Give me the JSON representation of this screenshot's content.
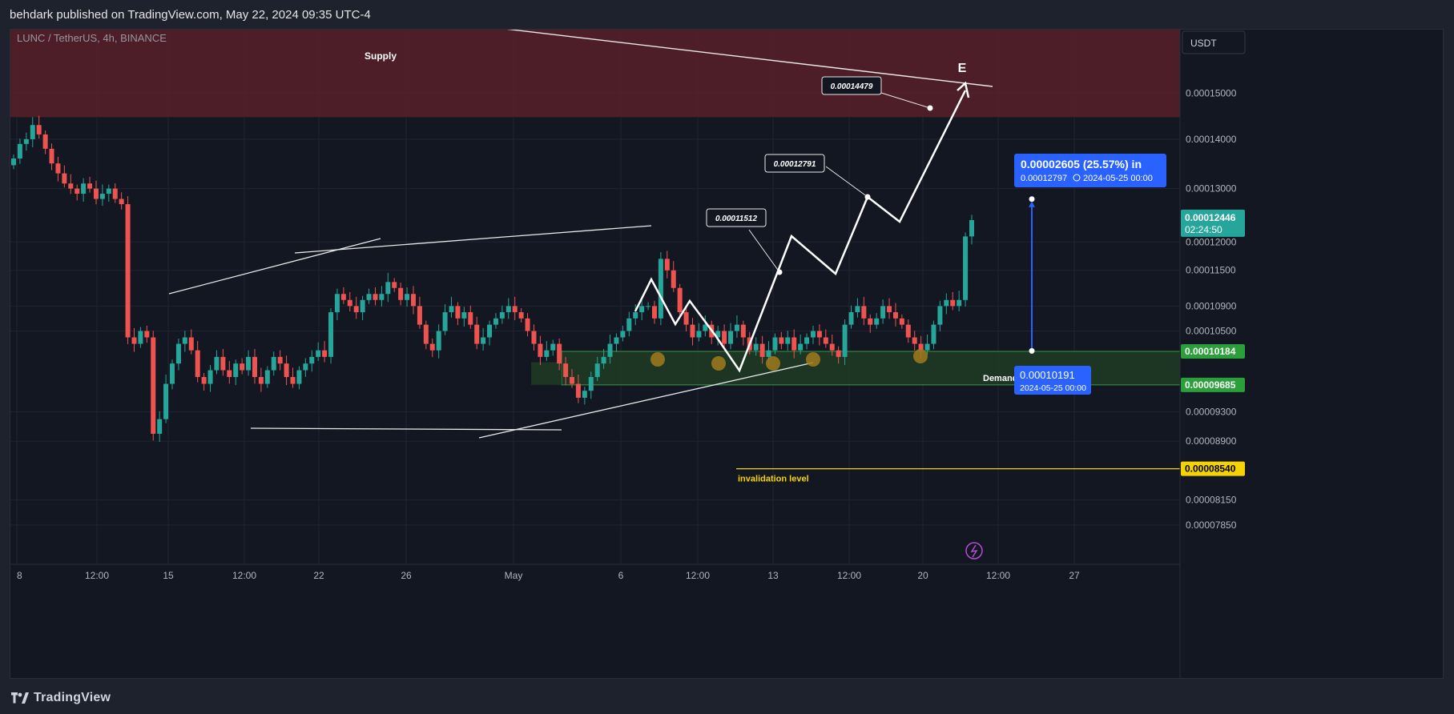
{
  "publisher_line": "behdark published on TradingView.com, May 22, 2024 09:35 UTC-4",
  "footer": {
    "brand": "TradingView"
  },
  "chart_data": {
    "type": "candlestick",
    "symbol_line": "LUNC / TetherUS, 4h, BINANCE",
    "currency": "USDT",
    "x_tick_labels": [
      "8",
      "12:00",
      "15",
      "12:00",
      "22",
      "26",
      "May",
      "6",
      "12:00",
      "13",
      "12:00",
      "20",
      "12:00",
      "27"
    ],
    "price_axis": {
      "min": 7.4e-05,
      "max": 0.000165,
      "scale": "log",
      "ticks": [
        "0.00015000",
        "0.00014000",
        "0.00013000",
        "0.00012000",
        "0.00011500",
        "0.00010900",
        "0.00010500",
        "0.00009300",
        "0.00008900",
        "0.00008150",
        "0.00007850"
      ]
    },
    "current_price": {
      "value": "0.00012446",
      "countdown": "02:24:50",
      "color": "#26a69a"
    },
    "zones": [
      {
        "label": "Supply",
        "top": 0.000165,
        "bottom": 0.0001447,
        "color": "#5c1f2b"
      },
      {
        "label": "Demand",
        "top": "0.00010184",
        "bottom": "0.00009685",
        "color": "#1f3a24"
      }
    ],
    "invalidation": {
      "label": "invalidation level",
      "price": "0.00008540",
      "color": "#f5d300"
    },
    "projection_labels": [
      "0.00011512",
      "0.00012791",
      "0.00014479"
    ],
    "wave_label": "E",
    "measure": {
      "headline": "0.00002605 (25.57%) in",
      "sub_price": "0.00012797",
      "sub_date": "2024-05-25  00:00",
      "start_price": "0.00010191",
      "start_date": "2024-05-25 00:00",
      "color": "#2962ff"
    },
    "candle_colors": {
      "up": "#26a69a",
      "down": "#ef5350"
    },
    "closes": [
      0.000136,
      0.000139,
      0.00014,
      0.000143,
      0.000141,
      0.000138,
      0.000135,
      0.000133,
      0.000131,
      0.00013,
      0.000129,
      0.000131,
      0.00013,
      0.000128,
      0.000129,
      0.00013,
      0.000128,
      0.000127,
      0.000104,
      0.000103,
      0.000105,
      0.000104,
      9e-05,
      9.2e-05,
      9.7e-05,
      0.0001,
      0.000103,
      0.000104,
      0.000102,
      9.8e-05,
      9.7e-05,
      9.9e-05,
      0.000101,
      9.9e-05,
      9.8e-05,
      0.0001,
      9.9e-05,
      0.000101,
      9.8e-05,
      9.7e-05,
      9.9e-05,
      0.000101,
      0.0001,
      9.8e-05,
      9.7e-05,
      9.9e-05,
      0.0001,
      0.000101,
      0.000102,
      0.000101,
      0.000108,
      0.000111,
      0.00011,
      0.000109,
      0.000108,
      0.00011,
      0.000111,
      0.00011,
      0.000111,
      0.000113,
      0.000112,
      0.00011,
      0.000111,
      0.000109,
      0.000106,
      0.000103,
      0.000102,
      0.000105,
      0.000108,
      0.000109,
      0.000107,
      0.000108,
      0.000106,
      0.000103,
      0.000104,
      0.000106,
      0.000107,
      0.000108,
      0.000109,
      0.000108,
      0.000107,
      0.000105,
      0.000103,
      0.000101,
      0.000102,
      0.000103,
      0.0001,
      9.8e-05,
      9.7e-05,
      9.5e-05,
      9.6e-05,
      9.8e-05,
      0.0001,
      0.000101,
      0.000103,
      0.000104,
      0.000105,
      0.000107,
      0.000108,
      0.000109,
      0.000109,
      0.000107,
      0.000117,
      0.000115,
      0.000112,
      0.000108,
      0.000106,
      0.000104,
      0.000105,
      0.000106,
      0.000104,
      0.000105,
      0.000103,
      0.000105,
      0.000106,
      0.000104,
      0.000102,
      0.000103,
      0.000101,
      0.000102,
      0.000104,
      0.000103,
      0.000104,
      0.000102,
      0.000103,
      0.000104,
      0.000105,
      0.000104,
      0.000103,
      0.000102,
      0.000101,
      0.000106,
      0.000108,
      0.000109,
      0.000107,
      0.000106,
      0.000107,
      0.000109,
      0.000108,
      0.000107,
      0.000106,
      0.000104,
      0.000103,
      0.000102,
      0.000103,
      0.000106,
      0.000109,
      0.00011,
      0.000109,
      0.00011,
      0.000121,
      0.000124
    ]
  }
}
